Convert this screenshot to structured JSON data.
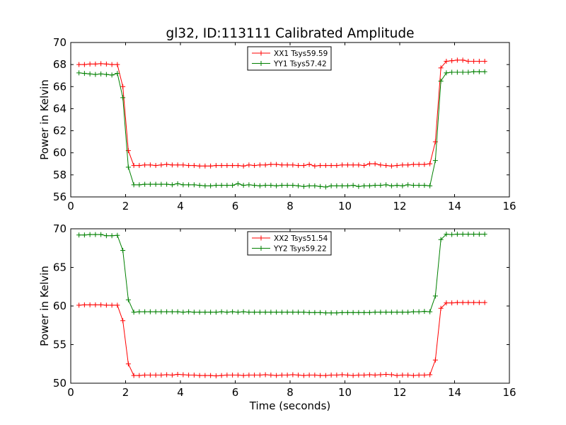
{
  "title": "gl32, ID:113111 Calibrated Amplitude",
  "chart_data": [
    {
      "type": "line",
      "title": "gl32, ID:113111 Calibrated Amplitude",
      "xlabel": "",
      "ylabel": "Power in Kelvin",
      "xlim": [
        0,
        16
      ],
      "ylim": [
        56,
        70
      ],
      "xticks": [
        0,
        2,
        4,
        6,
        8,
        10,
        12,
        14,
        16
      ],
      "yticks": [
        56,
        58,
        60,
        62,
        64,
        66,
        68,
        70
      ],
      "grid": false,
      "legend_position": "top-center",
      "x": [
        0.3,
        0.5,
        0.7,
        0.9,
        1.1,
        1.3,
        1.5,
        1.7,
        1.9,
        2.1,
        2.3,
        2.5,
        2.7,
        2.9,
        3.1,
        3.3,
        3.5,
        3.7,
        3.9,
        4.1,
        4.3,
        4.5,
        4.7,
        4.9,
        5.1,
        5.3,
        5.5,
        5.7,
        5.9,
        6.1,
        6.3,
        6.5,
        6.7,
        6.9,
        7.1,
        7.3,
        7.5,
        7.7,
        7.9,
        8.1,
        8.3,
        8.5,
        8.7,
        8.9,
        9.1,
        9.3,
        9.5,
        9.7,
        9.9,
        10.1,
        10.3,
        10.5,
        10.7,
        10.9,
        11.1,
        11.3,
        11.5,
        11.7,
        11.9,
        12.1,
        12.3,
        12.5,
        12.7,
        12.9,
        13.1,
        13.3,
        13.5,
        13.7,
        13.9,
        14.1,
        14.3,
        14.5,
        14.7,
        14.9,
        15.1
      ],
      "series": [
        {
          "name": "XX1 Tsys59.59",
          "color": "#ff0000",
          "values": [
            68.0,
            68.0,
            68.05,
            68.05,
            68.08,
            68.05,
            68.0,
            68.0,
            66.0,
            60.2,
            58.85,
            58.85,
            58.9,
            58.9,
            58.85,
            58.9,
            58.95,
            58.9,
            58.9,
            58.9,
            58.85,
            58.85,
            58.8,
            58.8,
            58.8,
            58.85,
            58.85,
            58.85,
            58.85,
            58.85,
            58.8,
            58.9,
            58.85,
            58.9,
            58.9,
            58.95,
            58.95,
            58.9,
            58.9,
            58.9,
            58.85,
            58.85,
            58.95,
            58.8,
            58.85,
            58.85,
            58.85,
            58.85,
            58.9,
            58.9,
            58.9,
            58.9,
            58.85,
            59.0,
            59.0,
            58.9,
            58.85,
            58.8,
            58.85,
            58.9,
            58.9,
            58.95,
            58.95,
            58.95,
            59.0,
            61.0,
            67.7,
            68.3,
            68.35,
            68.4,
            68.4,
            68.3,
            68.3,
            68.3,
            68.3
          ]
        },
        {
          "name": "YY1 Tsys57.42",
          "color": "#008000",
          "values": [
            67.25,
            67.2,
            67.15,
            67.1,
            67.15,
            67.1,
            67.05,
            67.2,
            65.0,
            58.7,
            57.1,
            57.1,
            57.15,
            57.15,
            57.15,
            57.15,
            57.15,
            57.1,
            57.2,
            57.1,
            57.1,
            57.1,
            57.05,
            57.0,
            57.0,
            57.05,
            57.05,
            57.05,
            57.05,
            57.2,
            57.05,
            57.1,
            57.05,
            57.0,
            57.05,
            57.05,
            57.0,
            57.05,
            57.05,
            57.05,
            57.0,
            56.95,
            57.0,
            57.0,
            56.95,
            56.9,
            57.0,
            57.0,
            57.0,
            57.0,
            57.05,
            56.95,
            57.0,
            57.0,
            57.05,
            57.05,
            57.1,
            57.0,
            57.05,
            57.0,
            57.1,
            57.05,
            57.05,
            57.05,
            57.0,
            59.3,
            66.5,
            67.25,
            67.3,
            67.3,
            67.3,
            67.3,
            67.35,
            67.35,
            67.35
          ]
        }
      ]
    },
    {
      "type": "line",
      "title": "",
      "xlabel": "Time (seconds)",
      "ylabel": "Power in Kelvin",
      "xlim": [
        0,
        16
      ],
      "ylim": [
        50,
        70
      ],
      "xticks": [
        0,
        2,
        4,
        6,
        8,
        10,
        12,
        14,
        16
      ],
      "yticks": [
        50,
        55,
        60,
        65,
        70
      ],
      "grid": false,
      "legend_position": "top-center",
      "x": [
        0.3,
        0.5,
        0.7,
        0.9,
        1.1,
        1.3,
        1.5,
        1.7,
        1.9,
        2.1,
        2.3,
        2.5,
        2.7,
        2.9,
        3.1,
        3.3,
        3.5,
        3.7,
        3.9,
        4.1,
        4.3,
        4.5,
        4.7,
        4.9,
        5.1,
        5.3,
        5.5,
        5.7,
        5.9,
        6.1,
        6.3,
        6.5,
        6.7,
        6.9,
        7.1,
        7.3,
        7.5,
        7.7,
        7.9,
        8.1,
        8.3,
        8.5,
        8.7,
        8.9,
        9.1,
        9.3,
        9.5,
        9.7,
        9.9,
        10.1,
        10.3,
        10.5,
        10.7,
        10.9,
        11.1,
        11.3,
        11.5,
        11.7,
        11.9,
        12.1,
        12.3,
        12.5,
        12.7,
        12.9,
        13.1,
        13.3,
        13.5,
        13.7,
        13.9,
        14.1,
        14.3,
        14.5,
        14.7,
        14.9,
        15.1
      ],
      "series": [
        {
          "name": "XX2 Tsys51.54",
          "color": "#ff0000",
          "values": [
            60.1,
            60.15,
            60.15,
            60.15,
            60.15,
            60.1,
            60.1,
            60.1,
            58.1,
            52.5,
            51.0,
            51.0,
            51.05,
            51.05,
            51.05,
            51.05,
            51.1,
            51.05,
            51.15,
            51.1,
            51.05,
            51.05,
            51.0,
            51.0,
            51.0,
            50.95,
            51.0,
            51.05,
            51.05,
            51.05,
            51.0,
            51.05,
            51.05,
            51.05,
            51.1,
            51.05,
            51.0,
            51.05,
            51.05,
            51.1,
            51.05,
            51.0,
            51.05,
            51.05,
            51.0,
            51.0,
            51.05,
            51.05,
            51.1,
            51.05,
            51.0,
            51.05,
            51.05,
            51.1,
            51.05,
            51.1,
            51.15,
            51.1,
            51.0,
            51.05,
            51.05,
            51.0,
            51.05,
            51.05,
            51.1,
            53.0,
            59.7,
            60.4,
            60.4,
            60.45,
            60.45,
            60.45,
            60.45,
            60.45,
            60.45
          ]
        },
        {
          "name": "YY2 Tsys59.22",
          "color": "#008000",
          "values": [
            69.2,
            69.2,
            69.25,
            69.25,
            69.25,
            69.1,
            69.1,
            69.15,
            67.2,
            60.8,
            59.2,
            59.25,
            59.25,
            59.25,
            59.25,
            59.25,
            59.25,
            59.25,
            59.25,
            59.2,
            59.25,
            59.2,
            59.2,
            59.2,
            59.2,
            59.2,
            59.25,
            59.2,
            59.25,
            59.2,
            59.25,
            59.2,
            59.2,
            59.2,
            59.2,
            59.2,
            59.2,
            59.2,
            59.2,
            59.2,
            59.2,
            59.2,
            59.15,
            59.15,
            59.15,
            59.1,
            59.1,
            59.1,
            59.15,
            59.15,
            59.15,
            59.15,
            59.15,
            59.15,
            59.2,
            59.2,
            59.2,
            59.2,
            59.2,
            59.2,
            59.2,
            59.25,
            59.25,
            59.3,
            59.25,
            61.3,
            68.6,
            69.3,
            69.25,
            69.3,
            69.3,
            69.3,
            69.3,
            69.3,
            69.3
          ]
        }
      ]
    }
  ]
}
